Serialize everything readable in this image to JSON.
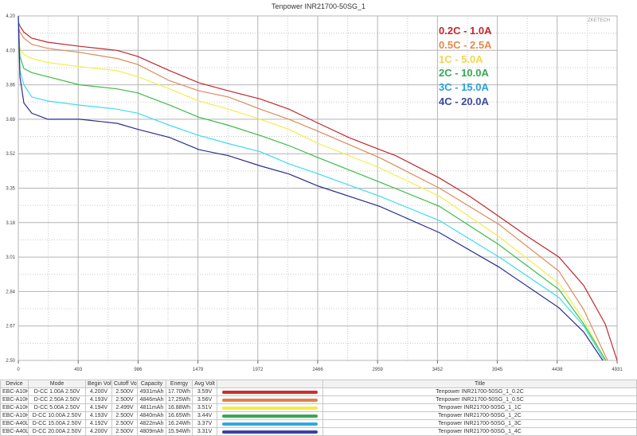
{
  "chart_data": {
    "type": "line",
    "title": "Tenpower INR21700-50SG_1",
    "watermark": "ZKETECH",
    "xlabel": "",
    "ylabel": "",
    "xlim": [
      0,
      4931
    ],
    "ylim": [
      2.5,
      4.2
    ],
    "x_ticks": [
      "0",
      "493",
      "986",
      "1479",
      "1972",
      "2466",
      "2959",
      "3452",
      "3945",
      "4438",
      "4931"
    ],
    "y_ticks": [
      "4.20",
      "4.03",
      "3.86",
      "3.69",
      "3.52",
      "3.35",
      "3.18",
      "3.01",
      "2.84",
      "2.67",
      "2.50"
    ],
    "grid": true,
    "legend_position": "top-right",
    "series": [
      {
        "name": "0.2C - 1.0A",
        "color": "#c0282c",
        "legend_color": "#c0282c",
        "x": [
          0,
          13,
          46,
          111,
          243,
          505,
          813,
          984,
          1246,
          1488,
          1731,
          1993,
          2229,
          2472,
          2721,
          2977,
          3108,
          3469,
          3718,
          3960,
          4197,
          4452,
          4656,
          4833,
          4931
        ],
        "y": [
          4.17,
          4.15,
          4.12,
          4.09,
          4.07,
          4.05,
          4.03,
          4.0,
          3.93,
          3.87,
          3.83,
          3.79,
          3.74,
          3.67,
          3.6,
          3.54,
          3.51,
          3.4,
          3.31,
          3.21,
          3.11,
          3.01,
          2.87,
          2.68,
          2.5
        ]
      },
      {
        "name": "0.5C - 2.5A",
        "color": "#dc8a5a",
        "legend_color": "#e08a4a",
        "x": [
          0,
          13,
          46,
          111,
          243,
          505,
          813,
          984,
          1246,
          1488,
          1731,
          1993,
          2229,
          2472,
          2977,
          3469,
          3960,
          4452,
          4656,
          4852
        ],
        "y": [
          4.15,
          4.12,
          4.09,
          4.06,
          4.04,
          4.02,
          3.99,
          3.96,
          3.88,
          3.83,
          3.8,
          3.74,
          3.69,
          3.63,
          3.5,
          3.35,
          3.17,
          2.94,
          2.75,
          2.5
        ]
      },
      {
        "name": "1C - 5.0A",
        "color": "#f3ee4c",
        "legend_color": "#f0d84a",
        "x": [
          0,
          13,
          46,
          111,
          243,
          505,
          813,
          984,
          1246,
          1488,
          1731,
          1993,
          2229,
          2472,
          2977,
          3469,
          3960,
          4452,
          4656,
          4833
        ],
        "y": [
          4.06,
          4.04,
          4.01,
          3.99,
          3.97,
          3.95,
          3.93,
          3.9,
          3.84,
          3.78,
          3.74,
          3.69,
          3.64,
          3.57,
          3.45,
          3.31,
          3.11,
          2.88,
          2.7,
          2.5
        ]
      },
      {
        "name": "2C - 10.0A",
        "color": "#3cbc4a",
        "legend_color": "#34a853",
        "x": [
          0,
          13,
          46,
          111,
          243,
          505,
          813,
          984,
          1246,
          1488,
          1731,
          1993,
          2229,
          2472,
          2977,
          3469,
          3960,
          4452,
          4656,
          4839
        ],
        "y": [
          4.19,
          4.0,
          3.94,
          3.92,
          3.9,
          3.86,
          3.84,
          3.82,
          3.76,
          3.7,
          3.66,
          3.61,
          3.56,
          3.5,
          3.38,
          3.26,
          3.07,
          2.85,
          2.68,
          2.5
        ]
      },
      {
        "name": "3C - 15.0A",
        "color": "#3edced",
        "legend_color": "#2aa0d8",
        "x": [
          0,
          13,
          46,
          111,
          243,
          505,
          813,
          984,
          1246,
          1488,
          1731,
          1993,
          2229,
          2472,
          2977,
          3469,
          3960,
          4452,
          4656,
          4826
        ],
        "y": [
          4.19,
          3.93,
          3.86,
          3.8,
          3.78,
          3.76,
          3.74,
          3.72,
          3.66,
          3.61,
          3.57,
          3.53,
          3.47,
          3.42,
          3.31,
          3.19,
          3.01,
          2.81,
          2.67,
          2.5
        ]
      },
      {
        "name": "4C - 20.0A",
        "color": "#2a2f8a",
        "legend_color": "#3a4a9e",
        "x": [
          0,
          13,
          46,
          111,
          243,
          505,
          813,
          984,
          1246,
          1488,
          1731,
          1993,
          2229,
          2472,
          2977,
          3469,
          3960,
          4452,
          4656,
          4813
        ],
        "y": [
          4.2,
          3.9,
          3.77,
          3.72,
          3.69,
          3.69,
          3.67,
          3.64,
          3.6,
          3.54,
          3.51,
          3.46,
          3.42,
          3.36,
          3.26,
          3.13,
          2.96,
          2.76,
          2.64,
          2.5
        ]
      }
    ]
  },
  "table": {
    "headers": [
      "Device",
      "Mode",
      "Begin Volt",
      "Cutoff Volt",
      "Capacity",
      "Energy",
      "Avg Volt",
      "",
      "Title"
    ],
    "rows": [
      {
        "device": "EBC-A10H",
        "mode": "D-CC 1.00A 2.50V",
        "begin": "4.200V",
        "cutoff": "2.500V",
        "capacity": "4931mAh",
        "energy": "17.70Wh",
        "avg": "3.59V",
        "color": "#c8302c",
        "title": "Tenpower INR21700-50SG_1_0.2C"
      },
      {
        "device": "EBC-A10H",
        "mode": "D-CC 2.50A 2.50V",
        "begin": "4.193V",
        "cutoff": "2.500V",
        "capacity": "4846mAh",
        "energy": "17.25Wh",
        "avg": "3.56V",
        "color": "#e0804a",
        "title": "Tenpower INR21700-50SG_1_0.5C"
      },
      {
        "device": "EBC-A10H",
        "mode": "D-CC 5.00A 2.50V",
        "begin": "4.194V",
        "cutoff": "2.499V",
        "capacity": "4811mAh",
        "energy": "16.88Wh",
        "avg": "3.51V",
        "color": "#f5ec40",
        "title": "Tenpower INR21700-50SG_1_1C"
      },
      {
        "device": "EBC-A10H",
        "mode": "D-CC 10.00A 2.50V",
        "begin": "4.193V",
        "cutoff": "2.500V",
        "capacity": "4840mAh",
        "energy": "16.65Wh",
        "avg": "3.44V",
        "color": "#38a850",
        "title": "Tenpower INR21700-50SG_1_2C"
      },
      {
        "device": "EBC-A40L",
        "mode": "D-CC 15.00A 2.50V",
        "begin": "4.192V",
        "cutoff": "2.500V",
        "capacity": "4822mAh",
        "energy": "16.24Wh",
        "avg": "3.37V",
        "color": "#30a8e0",
        "title": "Tenpower INR21700-50SG_1_3C"
      },
      {
        "device": "EBC-A40L",
        "mode": "D-CC 20.00A 2.50V",
        "begin": "4.200V",
        "cutoff": "2.500V",
        "capacity": "4809mAh",
        "energy": "15.94Wh",
        "avg": "3.31V",
        "color": "#3a40a8",
        "title": "Tenpower INR21700-50SG_1_4C"
      }
    ]
  }
}
